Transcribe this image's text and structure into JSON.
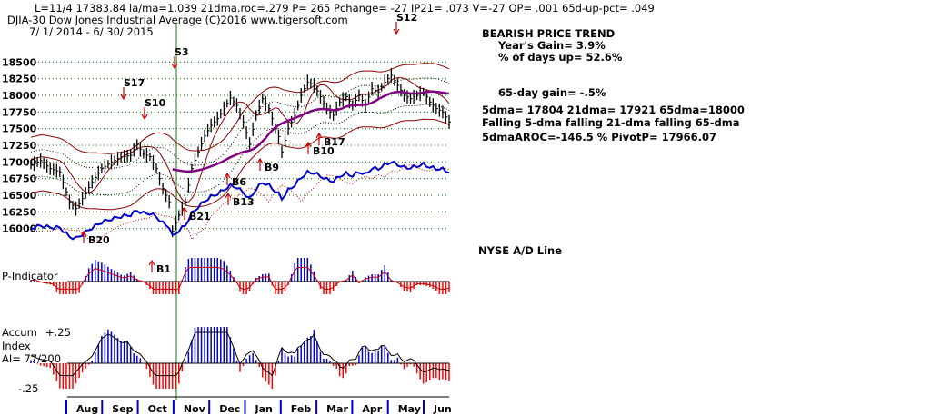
{
  "header": {
    "line1": "L=11/4  17383.84  la/ma=1.039 21dma.roc=.279 P=  265 Pchange= -27 IP21= .073 V=-27 OP= .001 65d-up-pct= .049",
    "line2": "DJIA-30  Dow Jones Industrial Average   (C)2016 www.tigersoft.com",
    "line3": "7/ 1/ 2014 - 6/ 30/ 2015"
  },
  "side": {
    "trend": "BEARISH PRICE TREND",
    "years_gain": "Year's Gain= 3.9%",
    "days_up": "% of days up= 52.6%",
    "gain65": "65-day gain= -.5%",
    "dma": "5dma= 17804 21dma= 17921 65dma=18000",
    "falling": "Falling 5-dma falling 21-dma falling 65-dma",
    "aroc": "5dmaAROC=-146.5 %  PivotP= 17966.07",
    "adline": "NYSE A/D Line"
  },
  "panel_labels": {
    "p_indicator": "P-Indicator",
    "accum1": "Accum",
    "accum2": "Index",
    "accum3": "AI= 77/200",
    "plus25": "+.25",
    "minus25": "-.25"
  },
  "colors": {
    "price": "#000000",
    "band": "#8b0000",
    "ma": "#800080",
    "adline": "#0000cc",
    "positive": "#0000cc",
    "negative": "#ff0000",
    "vline": "#008000",
    "signal": "#cc0000",
    "grid": "#008000"
  },
  "chart_data": {
    "type": "line",
    "title": "DJIA-30  Dow Jones Industrial Average",
    "x_range": [
      "7/1/2014",
      "6/30/2015"
    ],
    "months": [
      "Aug",
      "Sep",
      "Oct",
      "Nov",
      "Dec",
      "Jan",
      "Feb",
      "Mar",
      "Apr",
      "May",
      "Jun"
    ],
    "ylim": [
      15750,
      18750
    ],
    "yticks": [
      16000,
      16250,
      16500,
      16750,
      17000,
      17250,
      17500,
      17750,
      18000,
      18250,
      18500
    ],
    "price_path": [
      [
        0,
        16950
      ],
      [
        3,
        17020
      ],
      [
        6,
        16900
      ],
      [
        9,
        16850
      ],
      [
        12,
        16400
      ],
      [
        14,
        16300
      ],
      [
        16,
        16450
      ],
      [
        19,
        16700
      ],
      [
        22,
        16900
      ],
      [
        25,
        17000
      ],
      [
        28,
        17070
      ],
      [
        31,
        17100
      ],
      [
        33,
        17260
      ],
      [
        35,
        17120
      ],
      [
        37,
        17080
      ],
      [
        39,
        16900
      ],
      [
        41,
        16600
      ],
      [
        43,
        16400
      ],
      [
        44,
        15960
      ],
      [
        46,
        16200
      ],
      [
        48,
        16400
      ],
      [
        50,
        16900
      ],
      [
        52,
        17150
      ],
      [
        54,
        17390
      ],
      [
        56,
        17550
      ],
      [
        58,
        17650
      ],
      [
        60,
        17800
      ],
      [
        62,
        17960
      ],
      [
        64,
        17850
      ],
      [
        66,
        17600
      ],
      [
        68,
        17280
      ],
      [
        70,
        17700
      ],
      [
        72,
        17950
      ],
      [
        74,
        17800
      ],
      [
        76,
        17500
      ],
      [
        77,
        17380
      ],
      [
        78,
        17150
      ],
      [
        80,
        17500
      ],
      [
        82,
        17700
      ],
      [
        84,
        18000
      ],
      [
        86,
        18200
      ],
      [
        88,
        18150
      ],
      [
        90,
        17980
      ],
      [
        92,
        17800
      ],
      [
        94,
        17700
      ],
      [
        96,
        17900
      ],
      [
        98,
        17980
      ],
      [
        100,
        17850
      ],
      [
        102,
        18000
      ],
      [
        104,
        17850
      ],
      [
        106,
        18100
      ],
      [
        108,
        18050
      ],
      [
        110,
        18200
      ],
      [
        112,
        18300
      ],
      [
        114,
        18150
      ],
      [
        116,
        18000
      ],
      [
        118,
        17950
      ],
      [
        120,
        18000
      ],
      [
        122,
        18050
      ],
      [
        124,
        17900
      ],
      [
        126,
        17800
      ],
      [
        128,
        17750
      ],
      [
        130,
        17600
      ]
    ],
    "signals": [
      {
        "label": "S17",
        "type": "sell"
      },
      {
        "label": "S10",
        "type": "sell"
      },
      {
        "label": "S3",
        "type": "sell"
      },
      {
        "label": "S12",
        "type": "sell"
      },
      {
        "label": "B20",
        "type": "buy"
      },
      {
        "label": "B1",
        "type": "buy"
      },
      {
        "label": "B21",
        "type": "buy"
      },
      {
        "label": "B13",
        "type": "buy"
      },
      {
        "label": "B9",
        "type": "buy"
      },
      {
        "label": "B10",
        "type": "buy"
      },
      {
        "label": "B17",
        "type": "buy"
      },
      {
        "label": "B6",
        "type": "buy"
      }
    ]
  }
}
